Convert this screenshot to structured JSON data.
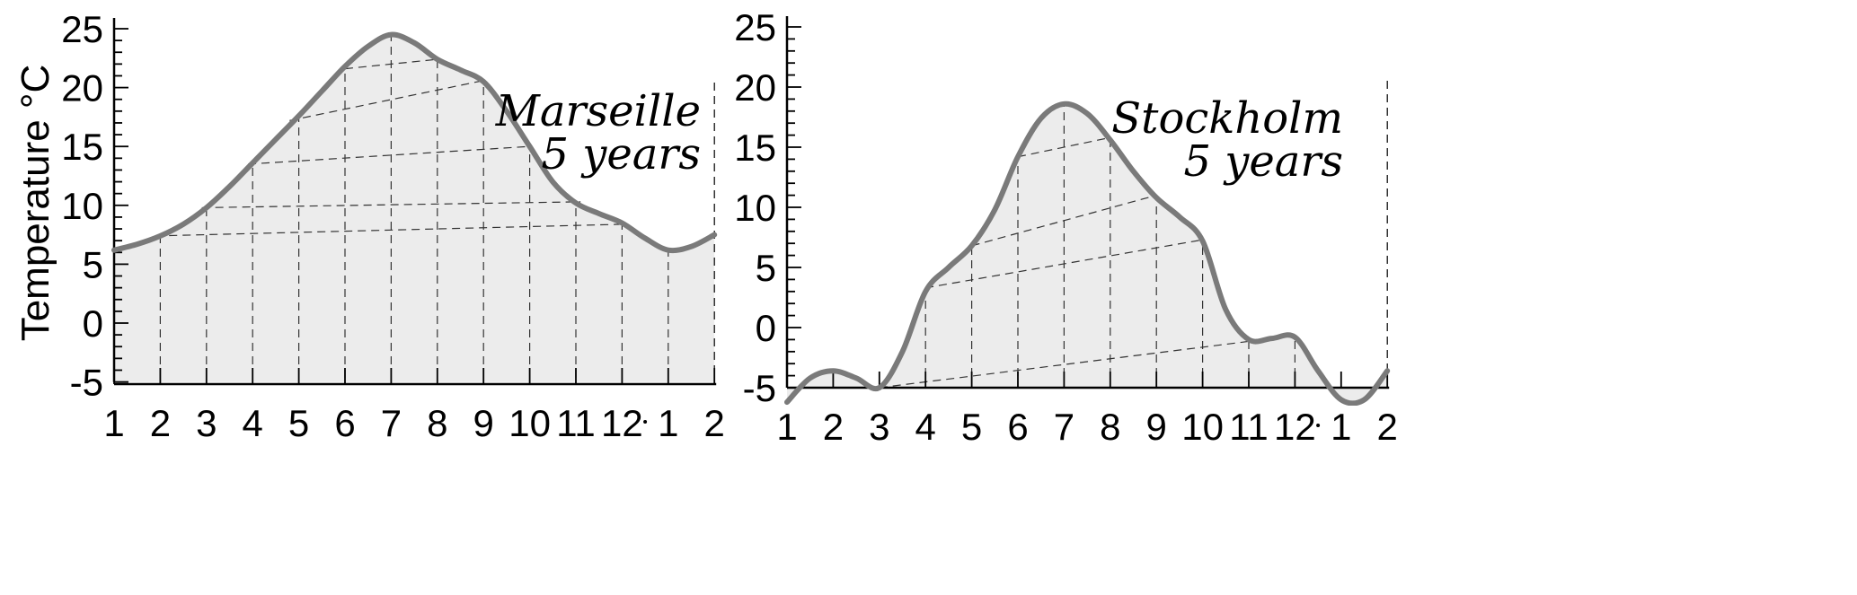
{
  "chart_data": [
    {
      "type": "area",
      "title": "Marseille\n5 years",
      "ylabel": "Temperature °C",
      "xlabel": "",
      "x_tick_labels": [
        "1",
        "2",
        "3",
        "4",
        "5",
        "6",
        "7",
        "8",
        "9",
        "10",
        "11",
        "12",
        "1",
        "2"
      ],
      "y_tick_labels": [
        "25",
        "20",
        "15",
        "10",
        "5",
        "0",
        "-5"
      ],
      "ylim": [
        -5,
        25
      ],
      "xlim": [
        1,
        14
      ],
      "grid": "dashed vertical lines at each month",
      "fill_color": "#ececec",
      "line_color": "#7a7a7a",
      "x": [
        1,
        1.5,
        2,
        2.5,
        3,
        3.5,
        4,
        4.5,
        5,
        5.5,
        6,
        6.5,
        7,
        7.5,
        8,
        8.5,
        9,
        9.5,
        10,
        10.5,
        11,
        11.5,
        12,
        12.5,
        13,
        13.5,
        14
      ],
      "values": [
        6.2,
        6.7,
        7.4,
        8.4,
        9.8,
        11.6,
        13.6,
        15.6,
        17.6,
        19.7,
        21.8,
        23.5,
        24.5,
        23.8,
        22.4,
        21.5,
        20.5,
        18.0,
        15.0,
        12.0,
        10.2,
        9.3,
        8.5,
        7.2,
        6.2,
        6.5,
        7.5
      ],
      "isotherms": [
        {
          "from_x": 1.9,
          "from_y": 7.4,
          "to_x": 12.1,
          "to_y": 8.4
        },
        {
          "from_x": 2.9,
          "from_y": 9.8,
          "to_x": 11.1,
          "to_y": 10.3
        },
        {
          "from_x": 3.9,
          "from_y": 13.5,
          "to_x": 10.0,
          "to_y": 15.0
        },
        {
          "from_x": 4.8,
          "from_y": 17.2,
          "to_x": 9.0,
          "to_y": 20.6
        },
        {
          "from_x": 6.0,
          "from_y": 21.6,
          "to_x": 8.0,
          "to_y": 22.4
        }
      ]
    },
    {
      "type": "area",
      "title": "Stockholm\n5 years",
      "ylabel": "",
      "xlabel": "",
      "x_tick_labels": [
        "1",
        "2",
        "3",
        "4",
        "5",
        "6",
        "7",
        "8",
        "9",
        "10",
        "11",
        "12",
        "1",
        "2"
      ],
      "y_tick_labels": [
        "25",
        "20",
        "15",
        "10",
        "5",
        "0",
        "-5"
      ],
      "ylim": [
        -5,
        25
      ],
      "xlim": [
        1,
        14
      ],
      "grid": "dashed vertical lines at each month",
      "fill_color": "#ececec",
      "line_color": "#7a7a7a",
      "x": [
        1,
        1.5,
        2,
        2.5,
        3,
        3.5,
        4,
        4.5,
        5,
        5.5,
        6,
        6.5,
        7,
        7.5,
        8,
        8.5,
        9,
        9.5,
        10,
        10.5,
        11,
        11.5,
        12,
        12.5,
        13,
        13.5,
        14
      ],
      "values": [
        -6.2,
        -4.2,
        -3.6,
        -4.2,
        -5.0,
        -2.0,
        3.0,
        5.0,
        6.8,
        9.8,
        14.2,
        17.4,
        18.6,
        17.8,
        15.6,
        13.0,
        10.8,
        9.2,
        7.2,
        1.5,
        -1.0,
        -0.9,
        -0.8,
        -3.6,
        -6.0,
        -6.0,
        -3.6
      ],
      "isotherms": [
        {
          "from_x": 3.0,
          "from_y": -5.0,
          "to_x": 11.1,
          "to_y": -1.1
        },
        {
          "from_x": 4.0,
          "from_y": 3.3,
          "to_x": 10.0,
          "to_y": 7.3
        },
        {
          "from_x": 5.0,
          "from_y": 6.8,
          "to_x": 9.0,
          "to_y": 11.0
        },
        {
          "from_x": 6.0,
          "from_y": 14.2,
          "to_x": 8.0,
          "to_y": 15.8
        }
      ]
    }
  ]
}
